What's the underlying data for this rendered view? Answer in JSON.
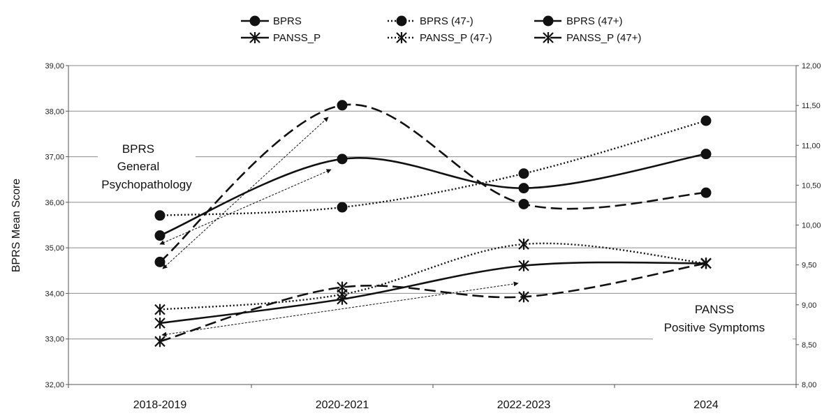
{
  "chart_data": {
    "type": "line",
    "categories": [
      "2018-2019",
      "2020-2021",
      "2022-2023",
      "2024"
    ],
    "ylabel": "BPRS Mean Score",
    "ylim_left": [
      32,
      39
    ],
    "ylim_right": [
      8,
      12
    ],
    "left_ticks": [
      "32,00",
      "33,00",
      "34,00",
      "35,00",
      "36,00",
      "37,00",
      "38,00",
      "39,00"
    ],
    "right_ticks": [
      "8,00",
      "8,50",
      "9,00",
      "9,50",
      "10,00",
      "10,50",
      "11,00",
      "11,50",
      "12,00"
    ],
    "grid": true,
    "legend_position": "top",
    "series": [
      {
        "name": "BPRS",
        "axis": "left",
        "marker": "circle",
        "dash": "solid",
        "values": [
          35.27,
          36.95,
          36.31,
          37.06
        ]
      },
      {
        "name": "BPRS (47-)",
        "axis": "left",
        "marker": "circle",
        "dash": "dotted",
        "values": [
          35.71,
          35.89,
          36.63,
          37.79
        ]
      },
      {
        "name": "BPRS (47+)",
        "axis": "left",
        "marker": "circle",
        "dash": "dashed",
        "values": [
          34.69,
          38.13,
          35.96,
          36.21
        ]
      },
      {
        "name": "PANSS_P",
        "axis": "right",
        "marker": "star",
        "dash": "solid",
        "values": [
          8.77,
          9.07,
          9.49,
          9.52
        ]
      },
      {
        "name": "PANSS_P (47-)",
        "axis": "right",
        "marker": "star",
        "dash": "dotted",
        "values": [
          8.94,
          9.13,
          9.76,
          9.52
        ]
      },
      {
        "name": "PANSS_P (47+)",
        "axis": "right",
        "marker": "star",
        "dash": "dashed",
        "values": [
          8.54,
          9.22,
          9.1,
          9.52
        ]
      }
    ],
    "annotations": [
      {
        "lines": [
          "BPRS",
          "General",
          "Psychopathology"
        ]
      },
      {
        "lines": [
          "PANSS",
          "Positive Symptoms"
        ]
      }
    ]
  }
}
